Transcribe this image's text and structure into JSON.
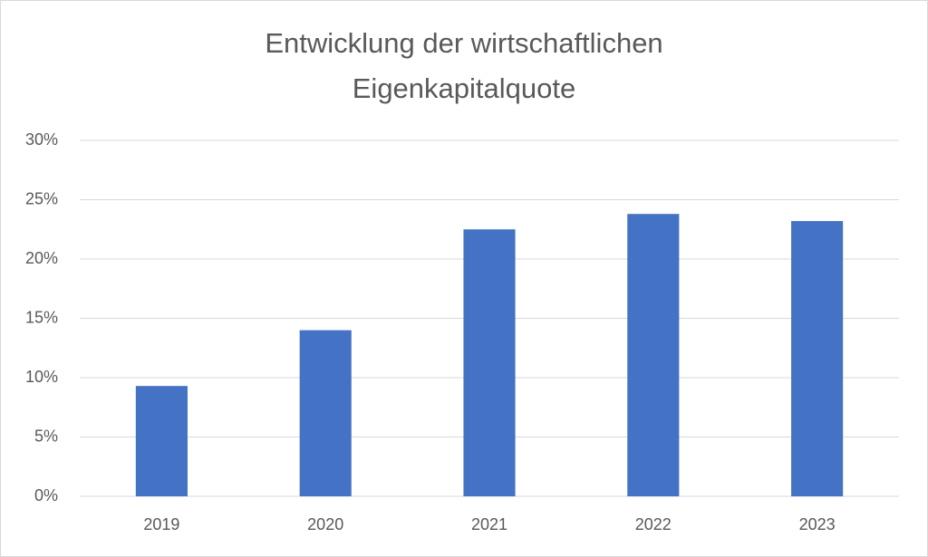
{
  "chart_data": {
    "type": "bar",
    "title": [
      "Entwicklung der wirtschaftlichen",
      "Eigenkapitalquote"
    ],
    "categories": [
      "2019",
      "2020",
      "2021",
      "2022",
      "2023"
    ],
    "values": [
      9.3,
      14.0,
      22.5,
      23.8,
      23.2
    ],
    "color": "#4472c4",
    "ylim": [
      0,
      30
    ],
    "yticks": [
      {
        "value": 0,
        "label": "0%"
      },
      {
        "value": 5,
        "label": "5%"
      },
      {
        "value": 10,
        "label": "10%"
      },
      {
        "value": 15,
        "label": "15%"
      },
      {
        "value": 20,
        "label": "20%"
      },
      {
        "value": 25,
        "label": "25%"
      },
      {
        "value": 30,
        "label": "30%"
      }
    ],
    "grid": true
  }
}
